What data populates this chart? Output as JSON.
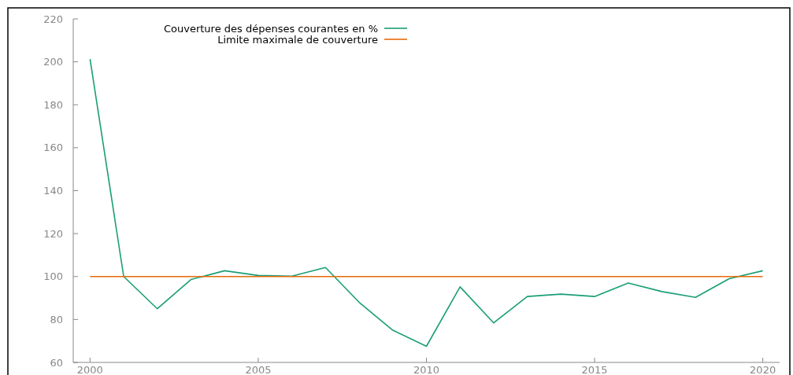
{
  "chart_data": {
    "type": "line",
    "x": [
      2000,
      2001,
      2002,
      2003,
      2004,
      2005,
      2006,
      2007,
      2008,
      2009,
      2010,
      2011,
      2012,
      2013,
      2014,
      2015,
      2016,
      2017,
      2018,
      2019,
      2020
    ],
    "series": [
      {
        "name": "Couverture des dépenses courantes en %",
        "color": "#1a9e77",
        "values": [
          201.3,
          100,
          85,
          98.6,
          102.7,
          100.5,
          100.2,
          104.2,
          88,
          75,
          67.5,
          95.2,
          78.4,
          90.7,
          91.8,
          90.7,
          97,
          93,
          90.3,
          99,
          102.7
        ]
      },
      {
        "name": "Limite maximale de couverture",
        "color": "#e66a0a",
        "x": [
          2000,
          2020
        ],
        "values": [
          100,
          100
        ]
      }
    ],
    "xlim": [
      1999.5,
      2020.5
    ],
    "xticks": [
      2000,
      2005,
      2010,
      2015,
      2020
    ],
    "ylim": [
      60,
      220
    ],
    "yticks": [
      60,
      80,
      100,
      120,
      140,
      160,
      180,
      200,
      220
    ],
    "grid": false,
    "legend": "top left",
    "marker": "none",
    "line_style": "solid"
  }
}
